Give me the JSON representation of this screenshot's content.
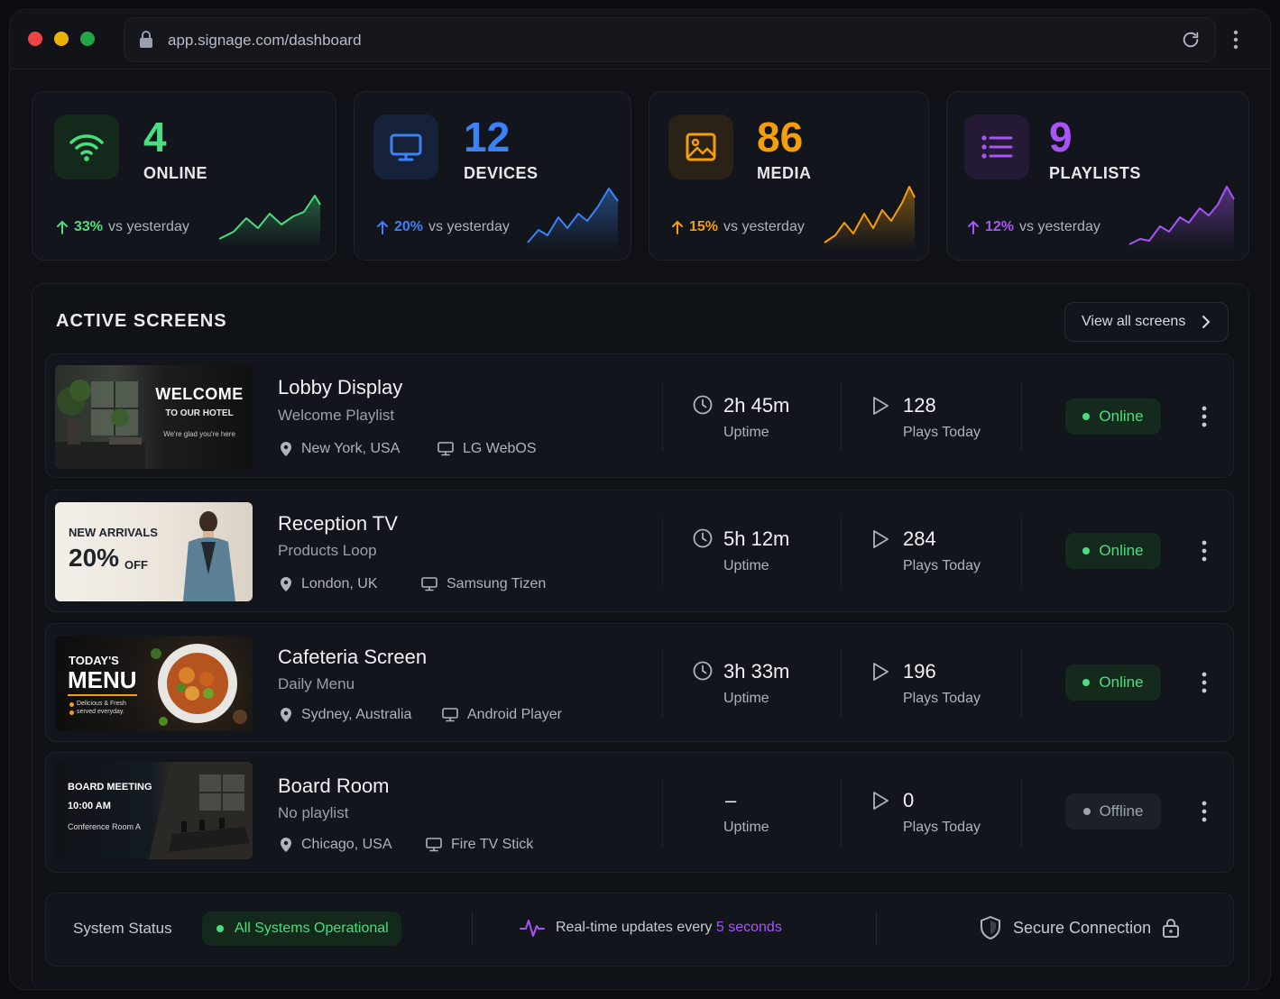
{
  "browser": {
    "url": "app.signage.com/dashboard"
  },
  "colors": {
    "green": "#4ade80",
    "blue": "#3b82f6",
    "orange": "#f59e0b",
    "purple": "#a855f7"
  },
  "stats": [
    {
      "value": "4",
      "label": "ONLINE",
      "pct": "33%",
      "trend_text": "vs yesterday",
      "icon": "wifi-icon",
      "color": "#4ade80"
    },
    {
      "value": "12",
      "label": "DEVICES",
      "pct": "20%",
      "trend_text": "vs yesterday",
      "icon": "monitor-icon",
      "color": "#3b82f6"
    },
    {
      "value": "86",
      "label": "MEDIA",
      "pct": "15%",
      "trend_text": "vs yesterday",
      "icon": "image-icon",
      "color": "#f59e0b"
    },
    {
      "value": "9",
      "label": "PLAYLISTS",
      "pct": "12%",
      "trend_text": "vs yesterday",
      "icon": "list-icon",
      "color": "#a855f7"
    }
  ],
  "active_screens": {
    "title": "ACTIVE SCREENS",
    "view_all": "View all screens",
    "uptime_label": "Uptime",
    "plays_label": "Plays Today",
    "screens": [
      {
        "name": "Lobby Display",
        "playlist": "Welcome Playlist",
        "location": "New York, USA",
        "device": "LG WebOS",
        "uptime": "2h 45m",
        "plays": "128",
        "status": "Online",
        "thumb": {
          "line1": "WELCOME",
          "line2": "TO OUR HOTEL",
          "line3": "We're glad you're here"
        }
      },
      {
        "name": "Reception TV",
        "playlist": "Products Loop",
        "location": "London, UK",
        "device": "Samsung Tizen",
        "uptime": "5h 12m",
        "plays": "284",
        "status": "Online",
        "thumb": {
          "line1": "NEW ARRIVALS",
          "line2": "20%",
          "line3": "OFF"
        }
      },
      {
        "name": "Cafeteria Screen",
        "playlist": "Daily Menu",
        "location": "Sydney, Australia",
        "device": "Android Player",
        "uptime": "3h 33m",
        "plays": "196",
        "status": "Online",
        "thumb": {
          "line1": "TODAY'S",
          "line2": "MENU",
          "line3": "Delicious & Fresh",
          "line4": "served everyday."
        }
      },
      {
        "name": "Board Room",
        "playlist": "No playlist",
        "location": "Chicago, USA",
        "device": "Fire TV Stick",
        "uptime": "–",
        "plays": "0",
        "status": "Offline",
        "thumb": {
          "line1": "BOARD MEETING",
          "line2": "10:00 AM",
          "line3": "Conference Room A"
        }
      }
    ]
  },
  "footer": {
    "system_status_label": "System Status",
    "system_status_value": "All Systems Operational",
    "realtime_text": "Real-time updates every",
    "realtime_value": "5 seconds",
    "secure_text": "Secure Connection"
  }
}
